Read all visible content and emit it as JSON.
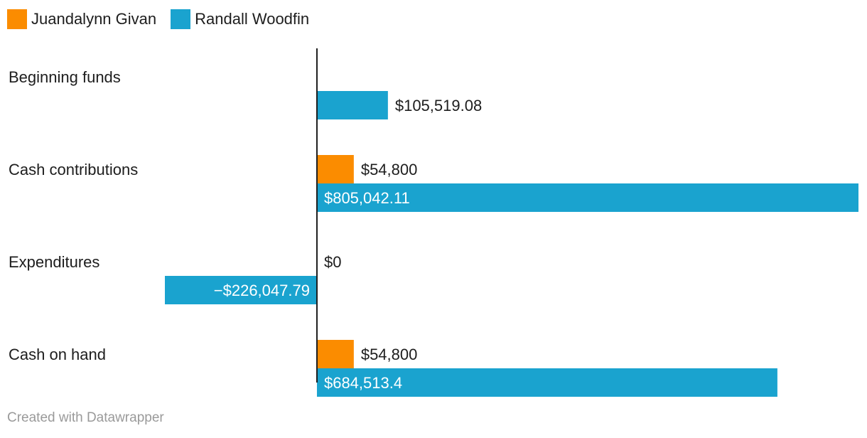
{
  "legend": {
    "items": [
      {
        "label": "Juandalynn Givan",
        "color": "#fb8c00"
      },
      {
        "label": "Randall Woodfin",
        "color": "#1aa3cf"
      }
    ]
  },
  "footer": {
    "credit": "Created with Datawrapper"
  },
  "chart_data": {
    "type": "bar",
    "orientation": "horizontal",
    "grouped": true,
    "categories": [
      "Beginning funds",
      "Cash contributions",
      "Expenditures",
      "Cash on hand"
    ],
    "series": [
      {
        "name": "Juandalynn Givan",
        "color": "#fb8c00",
        "values": [
          null,
          54800,
          0,
          54800
        ],
        "labels": [
          "",
          "$54,800",
          "$0",
          "$54,800"
        ]
      },
      {
        "name": "Randall Woodfin",
        "color": "#1aa3cf",
        "values": [
          105519.08,
          805042.11,
          -226047.79,
          684513.4
        ],
        "labels": [
          "$105,519.08",
          "$805,042.11",
          "−$226,047.79",
          "$684,513.4"
        ]
      }
    ],
    "xlim": [
      -226047.79,
      805042.11
    ],
    "grid": false,
    "legend_position": "top-left",
    "title": "",
    "xlabel": "",
    "ylabel": ""
  }
}
